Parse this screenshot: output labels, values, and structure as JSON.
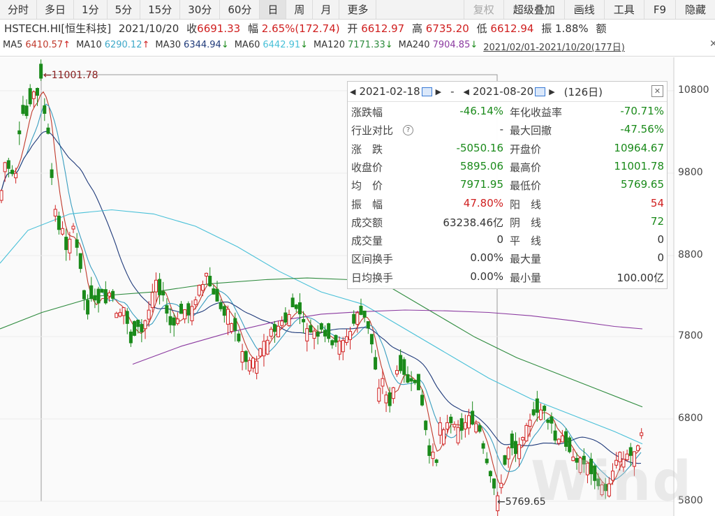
{
  "toolbar": {
    "left": [
      "分时",
      "多日",
      "1分",
      "5分",
      "15分",
      "30分",
      "60分",
      "日",
      "周",
      "月",
      "更多"
    ],
    "active_index": 7,
    "right": [
      "复权",
      "超级叠加",
      "画线",
      "工具",
      "F9",
      "隐藏"
    ]
  },
  "info": {
    "code": "HSTECH.HI[恒生科技]",
    "date": "2021/10/20",
    "close_label": "收",
    "close": "6691.33",
    "change_label": "幅",
    "change": "2.65%(172.74)",
    "open_label": "开",
    "open": "6612.97",
    "high_label": "高",
    "high": "6735.20",
    "low_label": "低",
    "low": "6612.94",
    "amp_label": "振",
    "amp": "1.88%",
    "vol_label": "额"
  },
  "ma": [
    {
      "name": "MA5",
      "value": "6410.57",
      "arrow": "↑",
      "color": "#c0392b"
    },
    {
      "name": "MA10",
      "value": "6290.12",
      "arrow": "↑",
      "color": "#3fa9c9"
    },
    {
      "name": "MA30",
      "value": "6344.94",
      "arrow": "↓",
      "color": "#1f3a7a"
    },
    {
      "name": "MA60",
      "value": "6442.91",
      "arrow": "↓",
      "color": "#48c0d8"
    },
    {
      "name": "MA120",
      "value": "7171.33",
      "arrow": "↓",
      "color": "#2e8b3e"
    },
    {
      "name": "MA240",
      "value": "7904.85",
      "arrow": "↓",
      "color": "#8b3aa0"
    }
  ],
  "range": "2021/02/01-2021/10/20(177日)",
  "popup": {
    "start_date": "2021-02-18",
    "dash": "-",
    "end_date": "2021-08-20",
    "days": "(126日)",
    "rows": [
      {
        "l1": "涨跌幅",
        "v1": "-46.14%",
        "c1": "green",
        "l2": "年化收益率",
        "v2": "-70.71%",
        "c2": "green"
      },
      {
        "l1": "行业对比",
        "v1": "-",
        "c1": "",
        "l2": "最大回撤",
        "v2": "-47.56%",
        "c2": "green"
      },
      {
        "l1": "涨　跌",
        "v1": "-5050.16",
        "c1": "green",
        "l2": "开盘价",
        "v2": "10964.67",
        "c2": "green"
      },
      {
        "l1": "收盘价",
        "v1": "5895.06",
        "c1": "green",
        "l2": "最高价",
        "v2": "11001.78",
        "c2": "green"
      },
      {
        "l1": "均　价",
        "v1": "7971.95",
        "c1": "green",
        "l2": "最低价",
        "v2": "5769.65",
        "c2": "green"
      },
      {
        "l1": "振　幅",
        "v1": "47.80%",
        "c1": "red",
        "l2": "阳　线",
        "v2": "54",
        "c2": "red"
      },
      {
        "l1": "成交额",
        "v1": "63238.46亿",
        "c1": "",
        "l2": "阴　线",
        "v2": "72",
        "c2": "green"
      },
      {
        "l1": "成交量",
        "v1": "0",
        "c1": "",
        "l2": "平　线",
        "v2": "0",
        "c2": ""
      },
      {
        "l1": "区间换手",
        "v1": "0.00%",
        "c1": "",
        "l2": "最大量",
        "v2": "0",
        "c2": ""
      },
      {
        "l1": "日均换手",
        "v1": "0.00%",
        "c1": "",
        "l2": "最小量",
        "v2": "100.00亿",
        "c2": ""
      }
    ]
  },
  "yaxis": [
    "10800",
    "9800",
    "8800",
    "7800",
    "6800",
    "5800"
  ],
  "marks": {
    "high": "11001.78",
    "low": "5769.65"
  },
  "watermark": "Wind",
  "colors": {
    "up": "#d02020",
    "down": "#1a8a1a"
  }
}
